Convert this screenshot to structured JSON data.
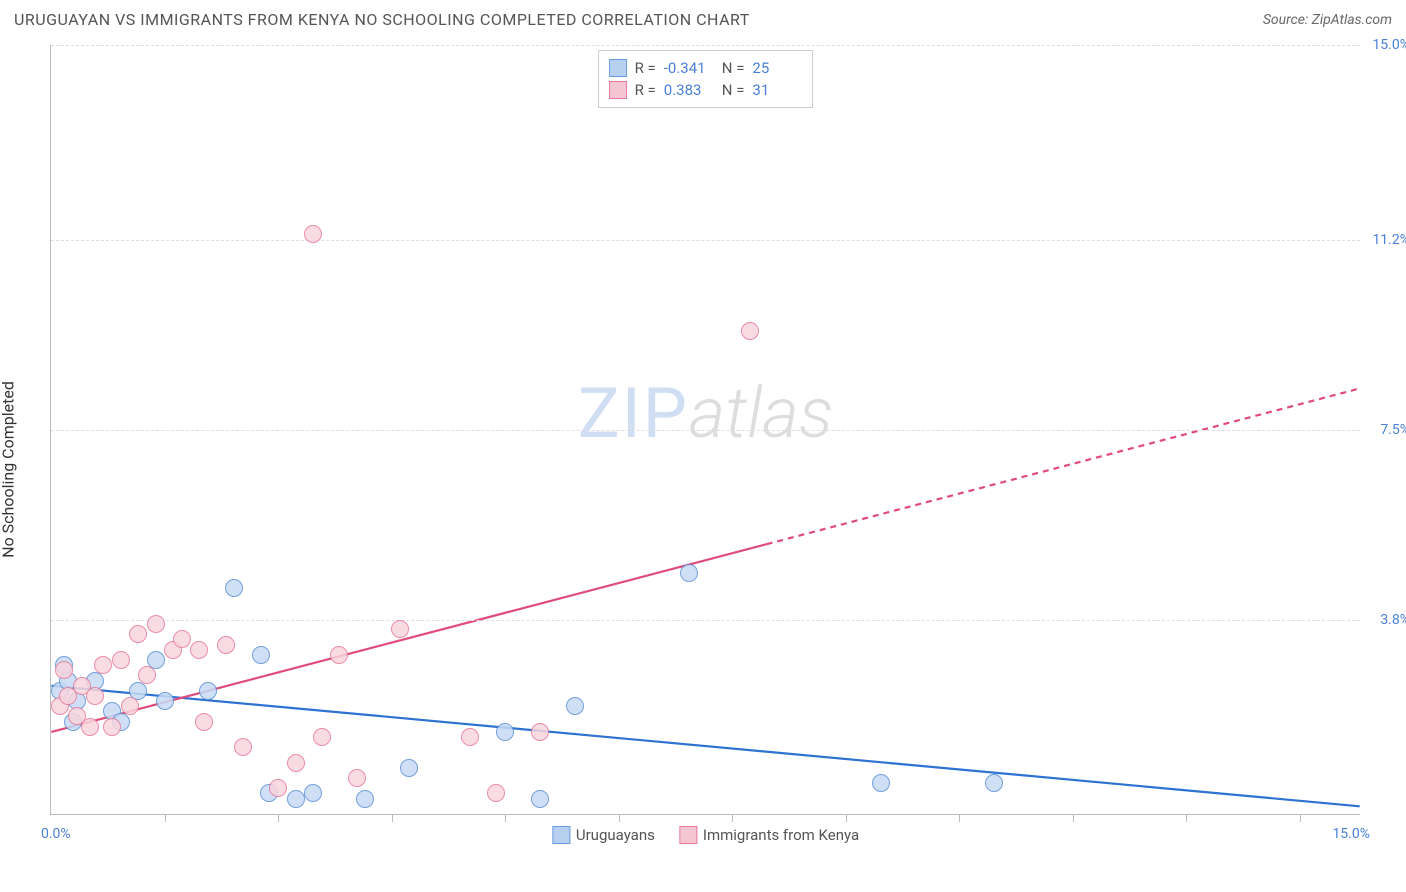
{
  "header": {
    "title": "URUGUAYAN VS IMMIGRANTS FROM KENYA NO SCHOOLING COMPLETED CORRELATION CHART",
    "source_prefix": "Source: ",
    "source": "ZipAtlas.com"
  },
  "chart": {
    "type": "scatter",
    "ylabel": "No Schooling Completed",
    "xlim": [
      0,
      15
    ],
    "ylim": [
      0,
      15
    ],
    "x_tick_positions": [
      1.3,
      2.6,
      3.9,
      5.2,
      6.5,
      7.8,
      9.1,
      10.4,
      11.7,
      13.0,
      14.3
    ],
    "y_gridlines": [
      3.8,
      7.5,
      11.2,
      15.0
    ],
    "y_tick_labels": [
      "3.8%",
      "7.5%",
      "11.2%",
      "15.0%"
    ],
    "x_label_min": "0.0%",
    "x_label_max": "15.0%",
    "background_color": "#ffffff",
    "grid_color": "#dddddd",
    "axis_color": "#bbbbbb",
    "tick_label_color": "#4a80d6",
    "marker_radius": 9,
    "marker_stroke_width": 1.5,
    "series": [
      {
        "name": "Uruguayans",
        "fill": "#c7dbf5",
        "stroke": "#5b8fd6",
        "swatch_fill": "#b8d0ef",
        "swatch_stroke": "#6a9de0",
        "stats": {
          "R": "-0.341",
          "N": "25"
        },
        "trend": {
          "x1": 0,
          "y1": 2.5,
          "x2": 15,
          "y2": 0.15,
          "solid_until_x": 15,
          "color": "#2e72d2",
          "width": 2.2
        },
        "points": [
          {
            "x": 0.1,
            "y": 2.4
          },
          {
            "x": 0.2,
            "y": 2.6
          },
          {
            "x": 0.25,
            "y": 1.8
          },
          {
            "x": 0.3,
            "y": 2.2
          },
          {
            "x": 0.5,
            "y": 2.6
          },
          {
            "x": 0.7,
            "y": 2.0
          },
          {
            "x": 0.8,
            "y": 1.8
          },
          {
            "x": 1.0,
            "y": 2.4
          },
          {
            "x": 1.2,
            "y": 3.0
          },
          {
            "x": 1.3,
            "y": 2.2
          },
          {
            "x": 1.8,
            "y": 2.4
          },
          {
            "x": 2.1,
            "y": 4.4
          },
          {
            "x": 2.4,
            "y": 3.1
          },
          {
            "x": 2.5,
            "y": 0.4
          },
          {
            "x": 2.8,
            "y": 0.3
          },
          {
            "x": 3.0,
            "y": 0.4
          },
          {
            "x": 3.6,
            "y": 0.3
          },
          {
            "x": 4.1,
            "y": 0.9
          },
          {
            "x": 5.2,
            "y": 1.6
          },
          {
            "x": 5.6,
            "y": 0.3
          },
          {
            "x": 6.0,
            "y": 2.1
          },
          {
            "x": 7.3,
            "y": 4.7
          },
          {
            "x": 9.5,
            "y": 0.6
          },
          {
            "x": 10.8,
            "y": 0.6
          },
          {
            "x": 0.15,
            "y": 2.9
          }
        ]
      },
      {
        "name": "Immigrants from Kenya",
        "fill": "#f8d5de",
        "stroke": "#e77a9a",
        "swatch_fill": "#f4c6d2",
        "swatch_stroke": "#e97a9c",
        "stats": {
          "R": "0.383",
          "N": "31"
        },
        "trend": {
          "x1": 0,
          "y1": 1.6,
          "x2": 15,
          "y2": 8.3,
          "solid_until_x": 8.2,
          "color": "#e14b7a",
          "width": 2.2
        },
        "points": [
          {
            "x": 0.1,
            "y": 2.1
          },
          {
            "x": 0.15,
            "y": 2.8
          },
          {
            "x": 0.2,
            "y": 2.3
          },
          {
            "x": 0.3,
            "y": 1.9
          },
          {
            "x": 0.35,
            "y": 2.5
          },
          {
            "x": 0.45,
            "y": 1.7
          },
          {
            "x": 0.5,
            "y": 2.3
          },
          {
            "x": 0.6,
            "y": 2.9
          },
          {
            "x": 0.7,
            "y": 1.7
          },
          {
            "x": 0.8,
            "y": 3.0
          },
          {
            "x": 0.9,
            "y": 2.1
          },
          {
            "x": 1.0,
            "y": 3.5
          },
          {
            "x": 1.1,
            "y": 2.7
          },
          {
            "x": 1.2,
            "y": 3.7
          },
          {
            "x": 1.4,
            "y": 3.2
          },
          {
            "x": 1.5,
            "y": 3.4
          },
          {
            "x": 1.7,
            "y": 3.2
          },
          {
            "x": 1.75,
            "y": 1.8
          },
          {
            "x": 2.0,
            "y": 3.3
          },
          {
            "x": 2.2,
            "y": 1.3
          },
          {
            "x": 2.6,
            "y": 0.5
          },
          {
            "x": 2.8,
            "y": 1.0
          },
          {
            "x": 3.0,
            "y": 11.3
          },
          {
            "x": 3.1,
            "y": 1.5
          },
          {
            "x": 3.3,
            "y": 3.1
          },
          {
            "x": 3.5,
            "y": 0.7
          },
          {
            "x": 4.0,
            "y": 3.6
          },
          {
            "x": 4.8,
            "y": 1.5
          },
          {
            "x": 5.1,
            "y": 0.4
          },
          {
            "x": 5.6,
            "y": 1.6
          },
          {
            "x": 8.0,
            "y": 9.4
          }
        ]
      }
    ],
    "stats_labels": {
      "R": "R =",
      "N": "N ="
    },
    "watermark": {
      "zip": "ZIP",
      "atlas": "atlas"
    }
  }
}
